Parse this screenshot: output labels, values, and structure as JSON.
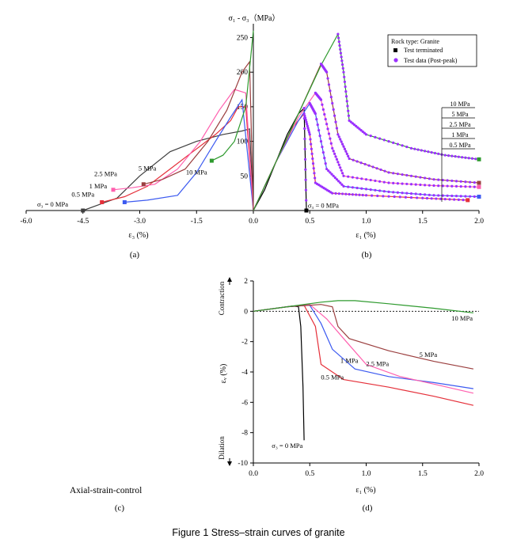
{
  "figure": {
    "caption": "Figure 1 Stress–strain curves of granite",
    "panel_labels": {
      "a": "(a)",
      "b": "(b)",
      "c": "(c)",
      "d": "(d)"
    },
    "control_label": "Axial-strain-control"
  },
  "chart_data": [
    {
      "id": "a",
      "type": "line",
      "xlabel": "ε₃ (%)",
      "ylabel": "",
      "xlim": [
        -6.0,
        0.0
      ],
      "ylim": [
        0,
        270
      ],
      "xticks": [
        "-6.0",
        "-4.5",
        "-3.0",
        "-1.5",
        "0.0"
      ],
      "annotations": [
        {
          "text": "5 MPa",
          "x": -2.8,
          "y": 58
        },
        {
          "text": "2.5 MPa",
          "x": -3.9,
          "y": 50
        },
        {
          "text": "1 MPa",
          "x": -4.1,
          "y": 32
        },
        {
          "text": "0.5 MPa",
          "x": -4.5,
          "y": 20
        },
        {
          "text": "σ₃ = 0 MPa",
          "x": -5.3,
          "y": 6
        },
        {
          "text": "10 MPa",
          "x": -1.5,
          "y": 52
        }
      ],
      "series": [
        {
          "color": "#3f3f3f",
          "x": [
            -4.5,
            -3.6,
            -3.0,
            -2.2,
            -1.5,
            -0.8,
            -0.3,
            -0.1,
            0.0
          ],
          "y": [
            0,
            18,
            50,
            85,
            100,
            110,
            115,
            118,
            0
          ]
        },
        {
          "color": "#e5303a",
          "x": [
            -4.0,
            -3.4,
            -2.8,
            -2.2,
            -1.6,
            -1.0,
            -0.6,
            -0.4,
            -0.2,
            0.0
          ],
          "y": [
            12,
            20,
            35,
            60,
            85,
            110,
            130,
            150,
            150,
            0
          ]
        },
        {
          "color": "#3c5af0",
          "x": [
            -3.4,
            -2.8,
            -2.0,
            -1.5,
            -1.0,
            -0.6,
            -0.3,
            0.0
          ],
          "y": [
            12,
            15,
            22,
            55,
            100,
            135,
            160,
            0
          ]
        },
        {
          "color": "#ff5fae",
          "x": [
            -3.7,
            -3.2,
            -2.6,
            -2.0,
            -1.4,
            -0.9,
            -0.5,
            -0.2,
            0.0
          ],
          "y": [
            30,
            33,
            38,
            60,
            100,
            145,
            175,
            170,
            0
          ]
        },
        {
          "color": "#9b3f3f",
          "x": [
            -2.9,
            -2.4,
            -1.8,
            -1.2,
            -0.7,
            -0.3,
            -0.1,
            0.0
          ],
          "y": [
            38,
            45,
            60,
            100,
            145,
            200,
            215,
            0
          ]
        },
        {
          "color": "#2e9a2e",
          "x": [
            -1.1,
            -0.8,
            -0.5,
            -0.2,
            0.0
          ],
          "y": [
            72,
            80,
            100,
            150,
            260
          ]
        }
      ]
    },
    {
      "id": "b",
      "type": "line",
      "title": "σ₁ - σ₃（MPa）",
      "xlabel": "ε₁ (%)",
      "xlim": [
        0.0,
        2.0
      ],
      "ylim": [
        0,
        270
      ],
      "xticks": [
        "0.0",
        "0.5",
        "1.0",
        "1.5",
        "2.0"
      ],
      "yticks": [
        "50",
        "100",
        "150",
        "200",
        "250"
      ],
      "legend": {
        "position": "top-right",
        "title": "Rock type: Granite",
        "entries": [
          {
            "label": "Test terminated",
            "marker": "square",
            "color": "#000000"
          },
          {
            "label": "Test data (Post-peak)",
            "marker": "circle",
            "color": "#9b30ff"
          }
        ]
      },
      "confining_labels": [
        "10 MPa",
        "5 MPa",
        "2.5 MPa",
        "1 MPa",
        "0.5 MPa"
      ],
      "annotation": "σ₃ = 0 MPa",
      "series": [
        {
          "color": "#000000",
          "x": [
            0.0,
            0.1,
            0.2,
            0.3,
            0.4,
            0.45,
            0.47
          ],
          "y": [
            0,
            30,
            70,
            110,
            140,
            148,
            0
          ]
        },
        {
          "color": "#e5303a",
          "x": [
            0.0,
            0.2,
            0.35,
            0.45,
            0.5,
            0.55,
            0.7,
            1.0,
            1.5,
            1.9
          ],
          "y": [
            0,
            70,
            120,
            140,
            110,
            40,
            25,
            22,
            18,
            15
          ]
        },
        {
          "color": "#3c5af0",
          "x": [
            0.0,
            0.2,
            0.4,
            0.5,
            0.55,
            0.65,
            0.8,
            1.2,
            1.6,
            2.0
          ],
          "y": [
            0,
            70,
            130,
            155,
            140,
            60,
            35,
            27,
            22,
            20
          ]
        },
        {
          "color": "#ff5fae",
          "x": [
            0.0,
            0.2,
            0.4,
            0.55,
            0.6,
            0.7,
            0.8,
            1.2,
            1.6,
            2.0
          ],
          "y": [
            0,
            70,
            135,
            170,
            160,
            90,
            50,
            40,
            36,
            34
          ]
        },
        {
          "color": "#9b3f3f",
          "x": [
            0.0,
            0.2,
            0.4,
            0.6,
            0.65,
            0.75,
            0.85,
            1.2,
            1.6,
            2.0
          ],
          "y": [
            0,
            70,
            140,
            212,
            200,
            110,
            75,
            55,
            45,
            40
          ]
        },
        {
          "color": "#2e9a2e",
          "x": [
            0.0,
            0.2,
            0.4,
            0.6,
            0.75,
            0.8,
            0.85,
            1.0,
            1.4,
            1.7,
            2.0
          ],
          "y": [
            0,
            70,
            140,
            210,
            255,
            200,
            130,
            110,
            90,
            80,
            74
          ]
        }
      ]
    },
    {
      "id": "d",
      "type": "line",
      "xlabel": "ε₁ (%)",
      "ylabel": "εᵥ (%)",
      "y_side_labels": {
        "top": "Contraction",
        "bottom": "Dilation"
      },
      "xlim": [
        0.0,
        2.0
      ],
      "ylim": [
        -10,
        2
      ],
      "xticks": [
        "0.0",
        "0.5",
        "1.0",
        "1.5",
        "2.0"
      ],
      "yticks": [
        "-10",
        "-8",
        "-6",
        "-4",
        "-2",
        "0",
        "2"
      ],
      "annotations": [
        {
          "text": "10 MPa",
          "x": 1.85,
          "y": -0.6
        },
        {
          "text": "5 MPa",
          "x": 1.55,
          "y": -3.0
        },
        {
          "text": "1 MPa",
          "x": 0.85,
          "y": -3.4
        },
        {
          "text": "2.5 MPa",
          "x": 1.1,
          "y": -3.6
        },
        {
          "text": "0.5 MPa",
          "x": 0.7,
          "y": -4.5
        },
        {
          "text": "σ₃ = 0 MPa",
          "x": 0.3,
          "y": -9.0
        }
      ],
      "series": [
        {
          "color": "#000000",
          "x": [
            0.0,
            0.2,
            0.35,
            0.4,
            0.42,
            0.44,
            0.45
          ],
          "y": [
            0,
            0.2,
            0.35,
            0.3,
            -1.0,
            -5.0,
            -8.5
          ]
        },
        {
          "color": "#e5303a",
          "x": [
            0.0,
            0.3,
            0.45,
            0.55,
            0.6,
            0.8,
            1.2,
            1.6,
            1.95
          ],
          "y": [
            0,
            0.3,
            0.4,
            -1.0,
            -3.5,
            -4.5,
            -5.0,
            -5.6,
            -6.2
          ]
        },
        {
          "color": "#3c5af0",
          "x": [
            0.0,
            0.3,
            0.5,
            0.6,
            0.7,
            0.9,
            1.2,
            1.6,
            1.95
          ],
          "y": [
            0,
            0.3,
            0.4,
            -0.8,
            -2.5,
            -3.8,
            -4.3,
            -4.7,
            -5.1
          ]
        },
        {
          "color": "#ff5fae",
          "x": [
            0.0,
            0.3,
            0.5,
            0.65,
            0.8,
            1.0,
            1.3,
            1.6,
            1.95
          ],
          "y": [
            0,
            0.3,
            0.45,
            -0.5,
            -1.8,
            -3.5,
            -4.3,
            -4.8,
            -5.4
          ]
        },
        {
          "color": "#9b3f3f",
          "x": [
            0.0,
            0.3,
            0.6,
            0.7,
            0.75,
            0.85,
            1.2,
            1.6,
            1.95
          ],
          "y": [
            0,
            0.3,
            0.45,
            0.3,
            -1.0,
            -1.8,
            -2.6,
            -3.3,
            -3.8
          ]
        },
        {
          "color": "#2e9a2e",
          "x": [
            0.0,
            0.3,
            0.6,
            0.75,
            0.9,
            1.2,
            1.6,
            1.95
          ],
          "y": [
            0,
            0.3,
            0.6,
            0.7,
            0.7,
            0.5,
            0.2,
            -0.1
          ]
        }
      ]
    }
  ]
}
